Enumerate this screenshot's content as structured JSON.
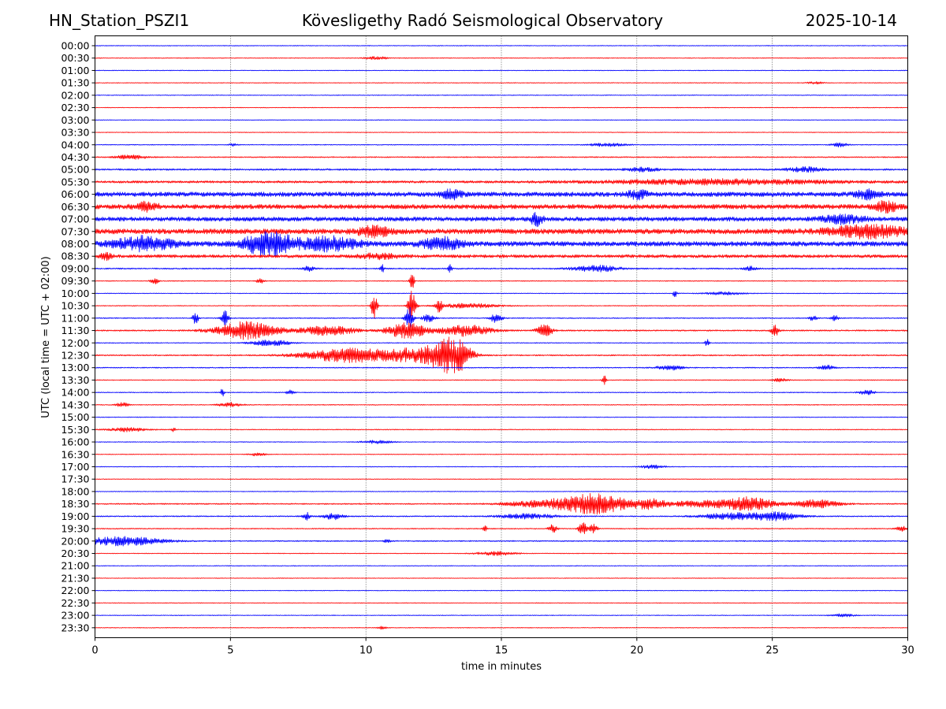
{
  "header": {
    "station": "HN_Station_PSZI1",
    "observatory": "Kövesligethy Radó Seismological Observatory",
    "date": "2025-10-14"
  },
  "chart_data": {
    "type": "line",
    "subtype": "helicorder",
    "title": "Kövesligethy Radó Seismological Observatory",
    "xlabel": "time in minutes",
    "ylabel": "UTC (local time = UTC + 02:00)",
    "xlim": [
      0,
      30
    ],
    "x_ticks": [
      0,
      5,
      10,
      15,
      20,
      25,
      30
    ],
    "vertical_gridlines_at": [
      5,
      10,
      15,
      20,
      25
    ],
    "grid_style": "dotted",
    "trace_colors": [
      "#0000ff",
      "#ff0000"
    ],
    "row_minutes_per_line": 30,
    "rows": [
      {
        "label": "00:00",
        "color": "#0000ff",
        "noise": 0.5,
        "events": []
      },
      {
        "label": "00:30",
        "color": "#ff0000",
        "noise": 0.5,
        "events": [
          {
            "t": 10.4,
            "amp": 2,
            "dur": 0.6
          }
        ]
      },
      {
        "label": "01:00",
        "color": "#0000ff",
        "noise": 0.5,
        "events": []
      },
      {
        "label": "01:30",
        "color": "#ff0000",
        "noise": 0.5,
        "events": [
          {
            "t": 26.6,
            "amp": 1.5,
            "dur": 0.4
          }
        ]
      },
      {
        "label": "02:00",
        "color": "#0000ff",
        "noise": 0.5,
        "events": []
      },
      {
        "label": "02:30",
        "color": "#ff0000",
        "noise": 0.5,
        "events": []
      },
      {
        "label": "03:00",
        "color": "#0000ff",
        "noise": 0.5,
        "events": []
      },
      {
        "label": "03:30",
        "color": "#ff0000",
        "noise": 0.5,
        "events": []
      },
      {
        "label": "04:00",
        "color": "#0000ff",
        "noise": 0.6,
        "events": [
          {
            "t": 5.1,
            "amp": 2,
            "dur": 0.2
          },
          {
            "t": 18.9,
            "amp": 2,
            "dur": 1.0
          },
          {
            "t": 27.5,
            "amp": 2.5,
            "dur": 0.4
          }
        ]
      },
      {
        "label": "04:30",
        "color": "#ff0000",
        "noise": 0.8,
        "events": [
          {
            "t": 1.3,
            "amp": 2.5,
            "dur": 0.8
          }
        ]
      },
      {
        "label": "05:00",
        "color": "#0000ff",
        "noise": 1.2,
        "events": [
          {
            "t": 20.2,
            "amp": 2.5,
            "dur": 0.8
          },
          {
            "t": 26.2,
            "amp": 3,
            "dur": 1.0
          }
        ]
      },
      {
        "label": "05:30",
        "color": "#ff0000",
        "noise": 1.6,
        "events": [
          {
            "t": 23,
            "amp": 3,
            "dur": 6
          }
        ]
      },
      {
        "label": "06:00",
        "color": "#0000ff",
        "noise": 3.2,
        "events": [
          {
            "t": 13.2,
            "amp": 6,
            "dur": 0.5
          },
          {
            "t": 20,
            "amp": 5,
            "dur": 0.5
          },
          {
            "t": 28.5,
            "amp": 5,
            "dur": 0.6
          }
        ]
      },
      {
        "label": "06:30",
        "color": "#ff0000",
        "noise": 3.2,
        "events": [
          {
            "t": 1.9,
            "amp": 5,
            "dur": 0.6
          },
          {
            "t": 29.2,
            "amp": 6,
            "dur": 0.6
          }
        ]
      },
      {
        "label": "07:00",
        "color": "#0000ff",
        "noise": 3.0,
        "events": [
          {
            "t": 16.3,
            "amp": 8,
            "dur": 0.3
          },
          {
            "t": 27.6,
            "amp": 5,
            "dur": 1.0
          }
        ]
      },
      {
        "label": "07:30",
        "color": "#ff0000",
        "noise": 3.6,
        "events": [
          {
            "t": 10.3,
            "amp": 6,
            "dur": 0.8
          },
          {
            "t": 28.5,
            "amp": 7,
            "dur": 2.0
          }
        ]
      },
      {
        "label": "08:00",
        "color": "#0000ff",
        "noise": 3.4,
        "events": [
          {
            "t": 1.8,
            "amp": 8,
            "dur": 1.5
          },
          {
            "t": 6.4,
            "amp": 16,
            "dur": 1.2
          },
          {
            "t": 8.6,
            "amp": 8,
            "dur": 1.5
          },
          {
            "t": 12.8,
            "amp": 7,
            "dur": 1.0
          }
        ]
      },
      {
        "label": "08:30",
        "color": "#ff0000",
        "noise": 2.2,
        "events": [
          {
            "t": 0.4,
            "amp": 5,
            "dur": 0.3
          },
          {
            "t": 10.5,
            "amp": 3,
            "dur": 1.0
          }
        ]
      },
      {
        "label": "09:00",
        "color": "#0000ff",
        "noise": 0.9,
        "events": [
          {
            "t": 7.9,
            "amp": 3,
            "dur": 0.3
          },
          {
            "t": 10.6,
            "amp": 5,
            "dur": 0.1
          },
          {
            "t": 13.1,
            "amp": 5,
            "dur": 0.1
          },
          {
            "t": 18.5,
            "amp": 4,
            "dur": 1.2
          },
          {
            "t": 24.2,
            "amp": 3,
            "dur": 0.3
          }
        ]
      },
      {
        "label": "09:30",
        "color": "#ff0000",
        "noise": 0.6,
        "events": [
          {
            "t": 2.2,
            "amp": 4,
            "dur": 0.2
          },
          {
            "t": 6.1,
            "amp": 3,
            "dur": 0.2
          },
          {
            "t": 11.7,
            "amp": 16,
            "dur": 0.1
          }
        ]
      },
      {
        "label": "10:00",
        "color": "#0000ff",
        "noise": 0.5,
        "events": [
          {
            "t": 21.4,
            "amp": 5,
            "dur": 0.1
          },
          {
            "t": 23.2,
            "amp": 2,
            "dur": 1.0
          }
        ]
      },
      {
        "label": "10:30",
        "color": "#ff0000",
        "noise": 0.6,
        "events": [
          {
            "t": 10.3,
            "amp": 18,
            "dur": 0.15
          },
          {
            "t": 11.7,
            "amp": 22,
            "dur": 0.2
          },
          {
            "t": 12.7,
            "amp": 8,
            "dur": 0.15
          },
          {
            "t": 13.8,
            "amp": 3,
            "dur": 1.5
          }
        ]
      },
      {
        "label": "11:00",
        "color": "#0000ff",
        "noise": 0.7,
        "events": [
          {
            "t": 3.7,
            "amp": 8,
            "dur": 0.15
          },
          {
            "t": 4.8,
            "amp": 9,
            "dur": 0.2
          },
          {
            "t": 11.6,
            "amp": 15,
            "dur": 0.2
          },
          {
            "t": 12.3,
            "amp": 5,
            "dur": 0.3
          },
          {
            "t": 14.8,
            "amp": 6,
            "dur": 0.3
          },
          {
            "t": 26.5,
            "amp": 3,
            "dur": 0.2
          },
          {
            "t": 27.3,
            "amp": 4,
            "dur": 0.2
          }
        ]
      },
      {
        "label": "11:30",
        "color": "#ff0000",
        "noise": 1.0,
        "events": [
          {
            "t": 5.6,
            "amp": 11,
            "dur": 1.6
          },
          {
            "t": 8.6,
            "amp": 6,
            "dur": 1.4
          },
          {
            "t": 11.5,
            "amp": 10,
            "dur": 1.0
          },
          {
            "t": 13.7,
            "amp": 7,
            "dur": 1.3
          },
          {
            "t": 16.6,
            "amp": 8,
            "dur": 0.4
          },
          {
            "t": 25.1,
            "amp": 7,
            "dur": 0.2
          }
        ]
      },
      {
        "label": "12:00",
        "color": "#0000ff",
        "noise": 0.6,
        "events": [
          {
            "t": 6.5,
            "amp": 4,
            "dur": 1.0
          },
          {
            "t": 22.6,
            "amp": 6,
            "dur": 0.1
          }
        ]
      },
      {
        "label": "12:30",
        "color": "#ff0000",
        "noise": 0.9,
        "events": [
          {
            "t": 9.5,
            "amp": 9,
            "dur": 2.5
          },
          {
            "t": 11.6,
            "amp": 6,
            "dur": 1.0
          },
          {
            "t": 12.9,
            "amp": 20,
            "dur": 1.0
          },
          {
            "t": 13.5,
            "amp": 10,
            "dur": 0.6
          }
        ]
      },
      {
        "label": "13:00",
        "color": "#0000ff",
        "noise": 0.7,
        "events": [
          {
            "t": 21.2,
            "amp": 3,
            "dur": 0.7
          },
          {
            "t": 27,
            "amp": 3,
            "dur": 0.4
          }
        ]
      },
      {
        "label": "13:30",
        "color": "#ff0000",
        "noise": 0.6,
        "events": [
          {
            "t": 18.8,
            "amp": 6,
            "dur": 0.1
          },
          {
            "t": 25.3,
            "amp": 2,
            "dur": 0.4
          }
        ]
      },
      {
        "label": "14:00",
        "color": "#0000ff",
        "noise": 0.6,
        "events": [
          {
            "t": 4.7,
            "amp": 5,
            "dur": 0.1
          },
          {
            "t": 7.2,
            "amp": 3,
            "dur": 0.2
          },
          {
            "t": 28.5,
            "amp": 3,
            "dur": 0.4
          }
        ]
      },
      {
        "label": "14:30",
        "color": "#ff0000",
        "noise": 0.6,
        "events": [
          {
            "t": 1.0,
            "amp": 3,
            "dur": 0.3
          },
          {
            "t": 5.0,
            "amp": 3,
            "dur": 0.6
          }
        ]
      },
      {
        "label": "15:00",
        "color": "#0000ff",
        "noise": 0.5,
        "events": []
      },
      {
        "label": "15:30",
        "color": "#ff0000",
        "noise": 0.6,
        "events": [
          {
            "t": 1.2,
            "amp": 2.5,
            "dur": 1.0
          },
          {
            "t": 2.9,
            "amp": 3,
            "dur": 0.1
          }
        ]
      },
      {
        "label": "16:00",
        "color": "#0000ff",
        "noise": 0.5,
        "events": [
          {
            "t": 10.4,
            "amp": 2,
            "dur": 0.8
          }
        ]
      },
      {
        "label": "16:30",
        "color": "#ff0000",
        "noise": 0.5,
        "events": [
          {
            "t": 6.0,
            "amp": 2,
            "dur": 0.4
          }
        ]
      },
      {
        "label": "17:00",
        "color": "#0000ff",
        "noise": 0.5,
        "events": [
          {
            "t": 20.6,
            "amp": 2.5,
            "dur": 0.6
          }
        ]
      },
      {
        "label": "17:30",
        "color": "#ff0000",
        "noise": 0.5,
        "events": []
      },
      {
        "label": "18:00",
        "color": "#0000ff",
        "noise": 0.5,
        "events": []
      },
      {
        "label": "18:30",
        "color": "#ff0000",
        "noise": 0.9,
        "events": [
          {
            "t": 16.6,
            "amp": 4,
            "dur": 2.0
          },
          {
            "t": 18.5,
            "amp": 12,
            "dur": 1.8
          },
          {
            "t": 20.5,
            "amp": 5,
            "dur": 0.8
          },
          {
            "t": 22.5,
            "amp": 4,
            "dur": 2.0
          },
          {
            "t": 24.2,
            "amp": 8,
            "dur": 1.2
          },
          {
            "t": 26.6,
            "amp": 5,
            "dur": 1.2
          }
        ]
      },
      {
        "label": "19:00",
        "color": "#0000ff",
        "noise": 0.8,
        "events": [
          {
            "t": 7.8,
            "amp": 5,
            "dur": 0.2
          },
          {
            "t": 8.8,
            "amp": 4,
            "dur": 0.5
          },
          {
            "t": 16.0,
            "amp": 3,
            "dur": 1.5
          },
          {
            "t": 23.5,
            "amp": 4,
            "dur": 1.6
          },
          {
            "t": 25.2,
            "amp": 5,
            "dur": 1.2
          }
        ]
      },
      {
        "label": "19:30",
        "color": "#ff0000",
        "noise": 0.7,
        "events": [
          {
            "t": 14.4,
            "amp": 4,
            "dur": 0.1
          },
          {
            "t": 16.9,
            "amp": 6,
            "dur": 0.2
          },
          {
            "t": 18.0,
            "amp": 9,
            "dur": 0.2
          },
          {
            "t": 18.4,
            "amp": 6,
            "dur": 0.2
          },
          {
            "t": 29.8,
            "amp": 3,
            "dur": 0.3
          }
        ]
      },
      {
        "label": "20:00",
        "color": "#0000ff",
        "noise": 0.8,
        "events": [
          {
            "t": 1.0,
            "amp": 6,
            "dur": 2.0
          },
          {
            "t": 10.8,
            "amp": 2,
            "dur": 0.2
          }
        ]
      },
      {
        "label": "20:30",
        "color": "#ff0000",
        "noise": 0.5,
        "events": [
          {
            "t": 14.8,
            "amp": 2.5,
            "dur": 1.0
          }
        ]
      },
      {
        "label": "21:00",
        "color": "#0000ff",
        "noise": 0.5,
        "events": []
      },
      {
        "label": "21:30",
        "color": "#ff0000",
        "noise": 0.5,
        "events": []
      },
      {
        "label": "22:00",
        "color": "#0000ff",
        "noise": 0.5,
        "events": []
      },
      {
        "label": "22:30",
        "color": "#ff0000",
        "noise": 0.5,
        "events": []
      },
      {
        "label": "23:00",
        "color": "#0000ff",
        "noise": 0.5,
        "events": [
          {
            "t": 27.6,
            "amp": 2,
            "dur": 0.6
          }
        ]
      },
      {
        "label": "23:30",
        "color": "#ff0000",
        "noise": 0.5,
        "events": [
          {
            "t": 10.6,
            "amp": 2,
            "dur": 0.2
          }
        ]
      }
    ]
  }
}
